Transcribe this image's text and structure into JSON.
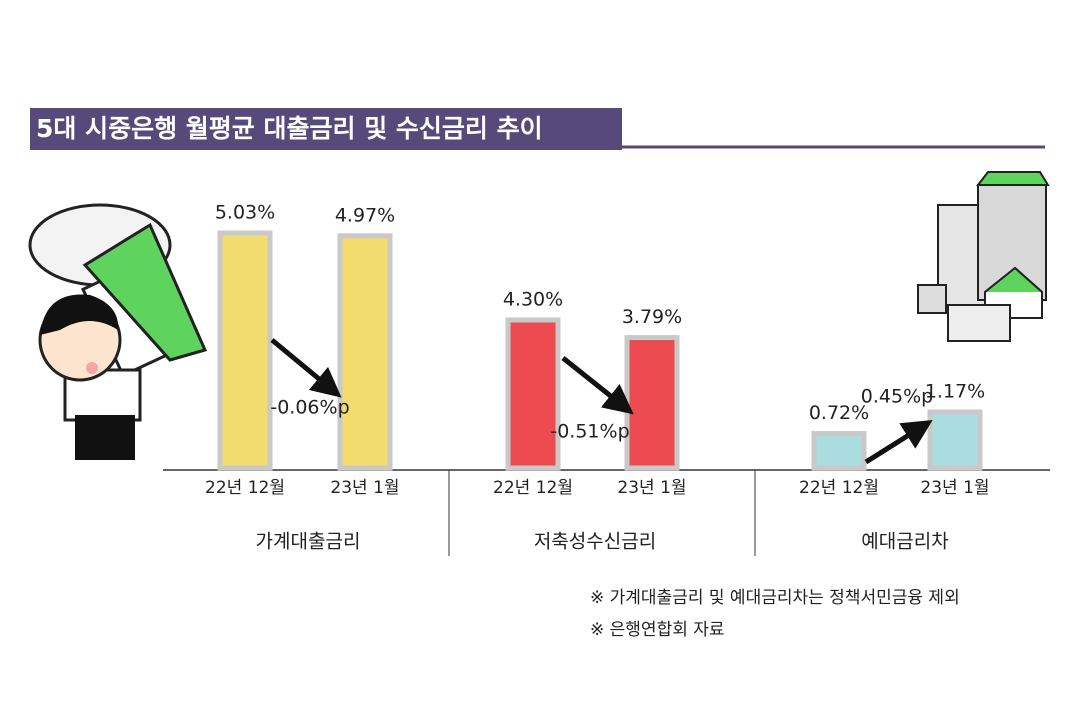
{
  "title": "5대 시중은행 월평균 대출금리 및 수신금리 추이",
  "chart_data": [
    {
      "type": "bar",
      "xlabel": "가계대출금리",
      "categories": [
        "22년 12월",
        "23년 1월"
      ],
      "values": [
        5.03,
        4.97
      ],
      "value_labels": [
        "5.03%",
        "4.97%"
      ],
      "color": "#f2dc6e",
      "annotation": "-0.06%p"
    },
    {
      "type": "bar",
      "xlabel": "저축성수신금리",
      "categories": [
        "22년 12월",
        "23년 1월"
      ],
      "values": [
        4.3,
        3.79
      ],
      "value_labels": [
        "4.30%",
        "3.79%"
      ],
      "color": "#ec4b4f",
      "annotation": "-0.51%p"
    },
    {
      "type": "bar",
      "xlabel": "예대금리차",
      "categories": [
        "22년 12월",
        "23년 1월"
      ],
      "values": [
        0.72,
        1.17
      ],
      "value_labels": [
        "0.72%",
        "1.17%"
      ],
      "color": "#a9dde0",
      "annotation": "0.45%p"
    }
  ],
  "notes": [
    "※ 가계대출금리 및 예대금리차는 정책서민금융 제외",
    "※ 은행연합회 자료"
  ]
}
